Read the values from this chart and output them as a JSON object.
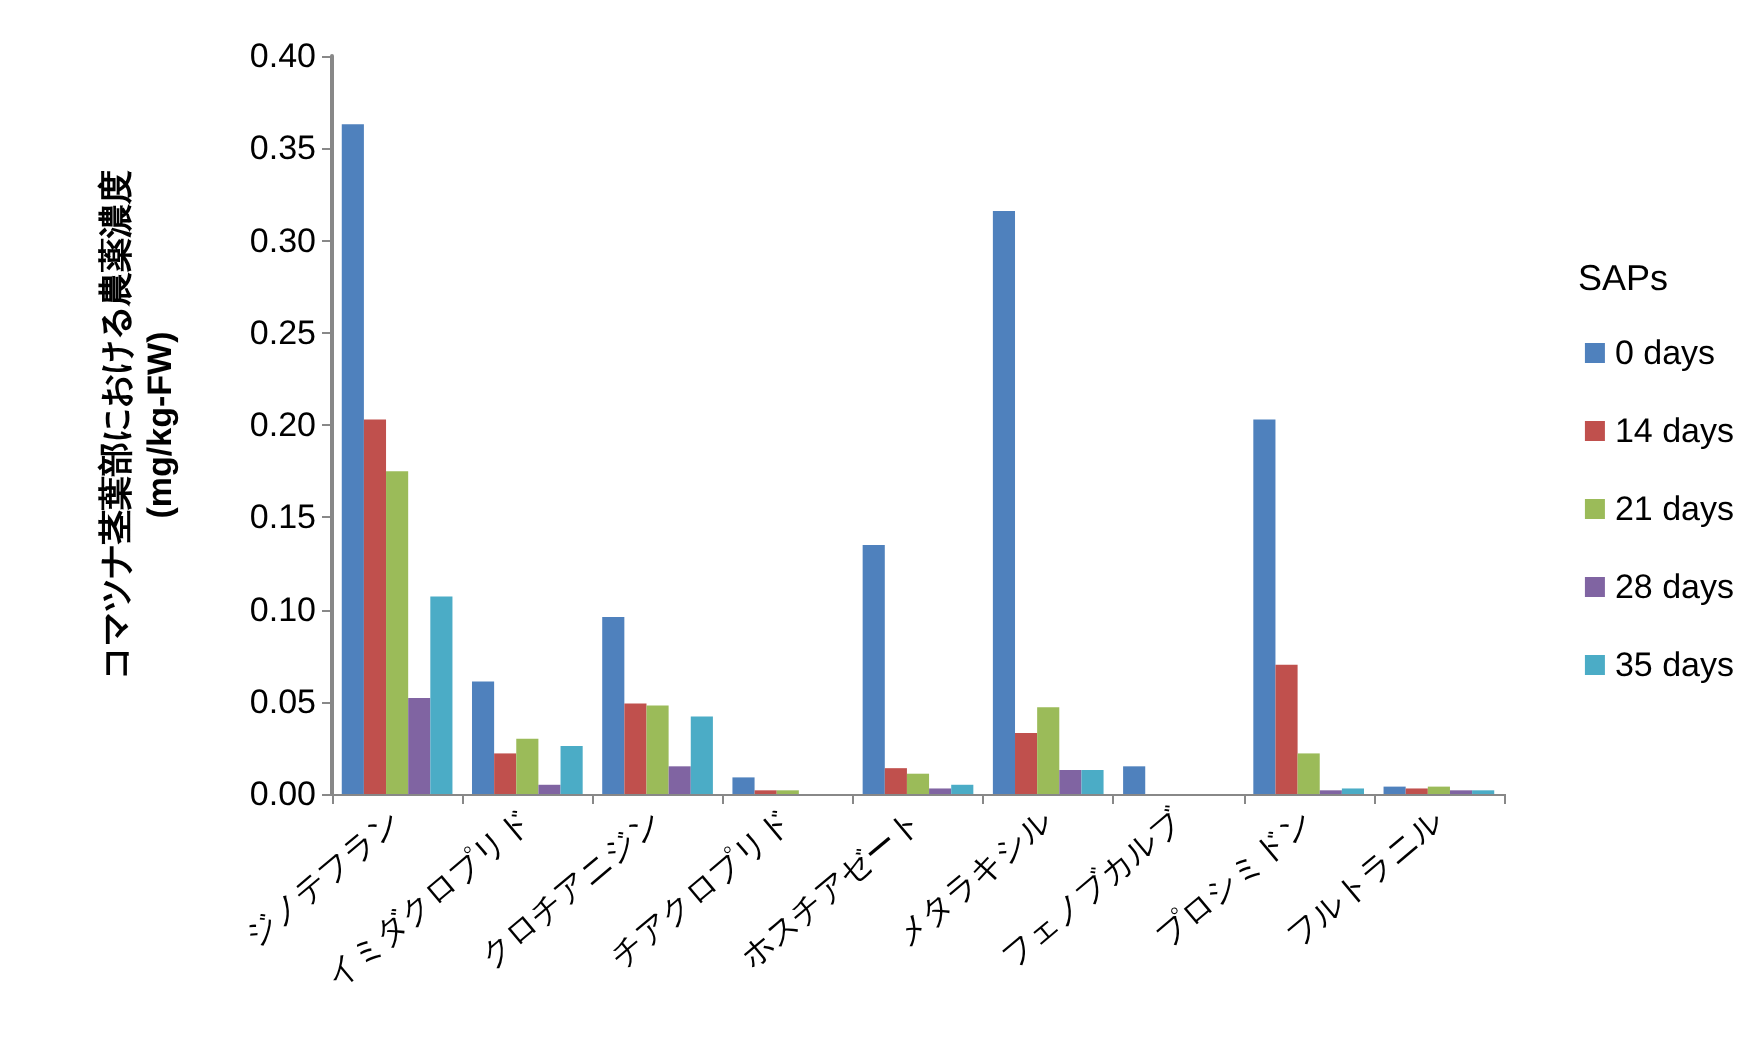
{
  "chart_data": {
    "type": "bar",
    "ylabel": "コマツナ茎葉部における農薬濃度\n(mg/kg-FW)",
    "legend_title": "SAPs",
    "legend": "right",
    "grid": false,
    "categories": [
      "ジノテフラン",
      "イミダクロプリド",
      "クロチアニジン",
      "チアクロプリド",
      "ホスチアゼート",
      "メタラキシル",
      "フェノブカルブ",
      "プロシミドン",
      "フルトラニル"
    ],
    "ylim": [
      0,
      0.4
    ],
    "yticks": [
      {
        "value": 0,
        "label": "0.00"
      },
      {
        "value": 0.05,
        "label": "0.05"
      },
      {
        "value": 0.1,
        "label": "0.10"
      },
      {
        "value": 0.15,
        "label": "0.15"
      },
      {
        "value": 0.2,
        "label": "0.20"
      },
      {
        "value": 0.25,
        "label": "0.25"
      },
      {
        "value": 0.3,
        "label": "0.30"
      },
      {
        "value": 0.35,
        "label": "0.35"
      },
      {
        "value": 0.4,
        "label": "0.40"
      }
    ],
    "series": [
      {
        "name": "0 days",
        "color": "#4f81bd",
        "values": [
          0.363,
          0.061,
          0.096,
          0.009,
          0.135,
          0.316,
          0.015,
          0.203,
          0.004
        ]
      },
      {
        "name": "14 days",
        "color": "#c0504d",
        "values": [
          0.203,
          0.022,
          0.049,
          0.002,
          0.014,
          0.033,
          0,
          0.07,
          0.003
        ]
      },
      {
        "name": "21 days",
        "color": "#9bbb59",
        "values": [
          0.175,
          0.03,
          0.048,
          0.002,
          0.011,
          0.047,
          0,
          0.022,
          0.004
        ]
      },
      {
        "name": "28 days",
        "color": "#8064a2",
        "values": [
          0.052,
          0.005,
          0.015,
          0,
          0.003,
          0.013,
          0,
          0.002,
          0.002
        ]
      },
      {
        "name": "35 days",
        "color": "#4bacc6",
        "values": [
          0.107,
          0.026,
          0.042,
          0,
          0.005,
          0.013,
          0,
          0.003,
          0.002
        ]
      }
    ]
  }
}
